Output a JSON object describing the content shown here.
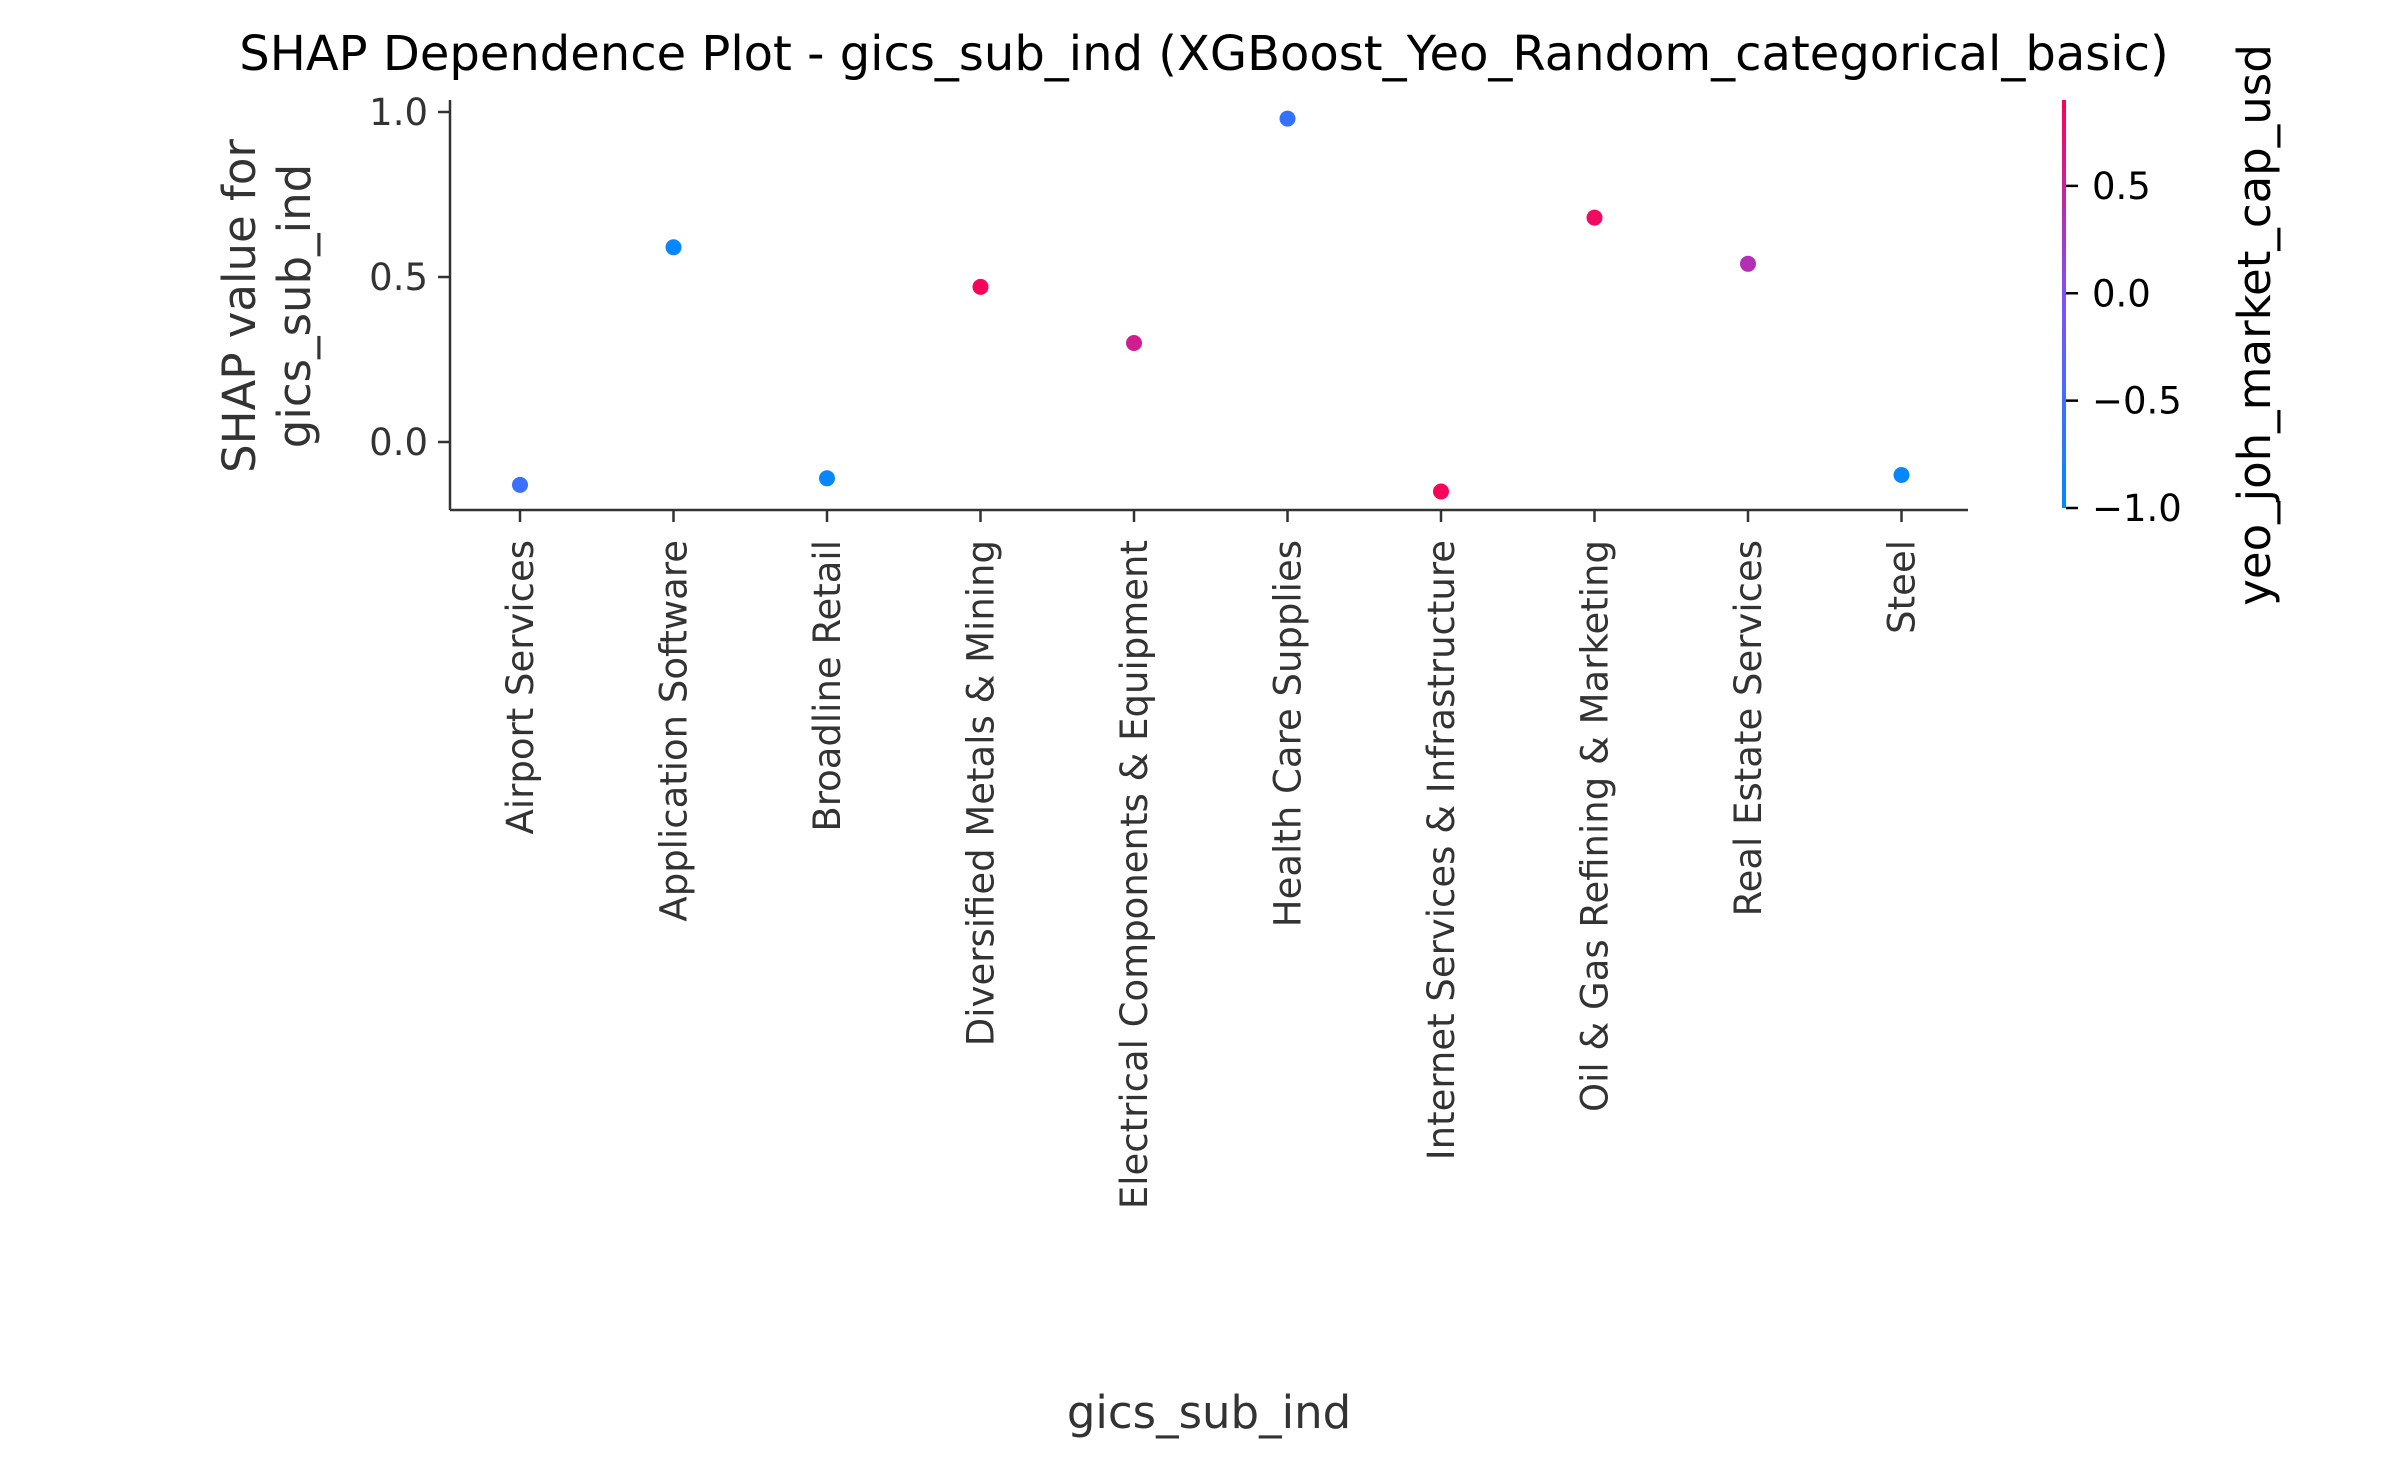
{
  "chart_data": {
    "type": "scatter",
    "title": "SHAP Dependence Plot - gics_sub_ind (XGBoost_Yeo_Random_categorical_basic)",
    "xlabel": "gics_sub_ind",
    "ylabel_lines": [
      "SHAP value for",
      "gics_sub_ind"
    ],
    "ylim": [
      -0.2,
      1.03
    ],
    "yticks": [
      0.0,
      0.5,
      1.0
    ],
    "ytick_labels": [
      "0.0",
      "0.5",
      "1.0"
    ],
    "categories": [
      "Airport Services",
      "Application Software",
      "Broadline Retail",
      "Diversified Metals & Mining",
      "Electrical Components & Equipment",
      "Health Care Supplies",
      "Internet Services & Infrastructure",
      "Oil & Gas Refining & Marketing",
      "Real Estate Services",
      "Steel"
    ],
    "values": [
      -0.13,
      0.59,
      -0.11,
      0.47,
      0.3,
      0.98,
      -0.15,
      0.68,
      0.54,
      -0.1
    ],
    "color_values": [
      -0.55,
      -0.95,
      -0.95,
      0.85,
      0.55,
      -0.6,
      0.85,
      0.8,
      0.35,
      -0.95
    ],
    "colorbar": {
      "label": "yeo_joh_market_cap_usd",
      "range": [
        -1.0,
        0.9
      ],
      "ticks": [
        0.5,
        0.0,
        -0.5,
        -1.0
      ],
      "tick_labels": [
        "0.5",
        "0.0",
        "−0.5",
        "−1.0"
      ],
      "colormap_low": "#008afb",
      "colormap_mid": "#7c52ff",
      "colormap_high": "#ff0052"
    },
    "grid": false
  }
}
